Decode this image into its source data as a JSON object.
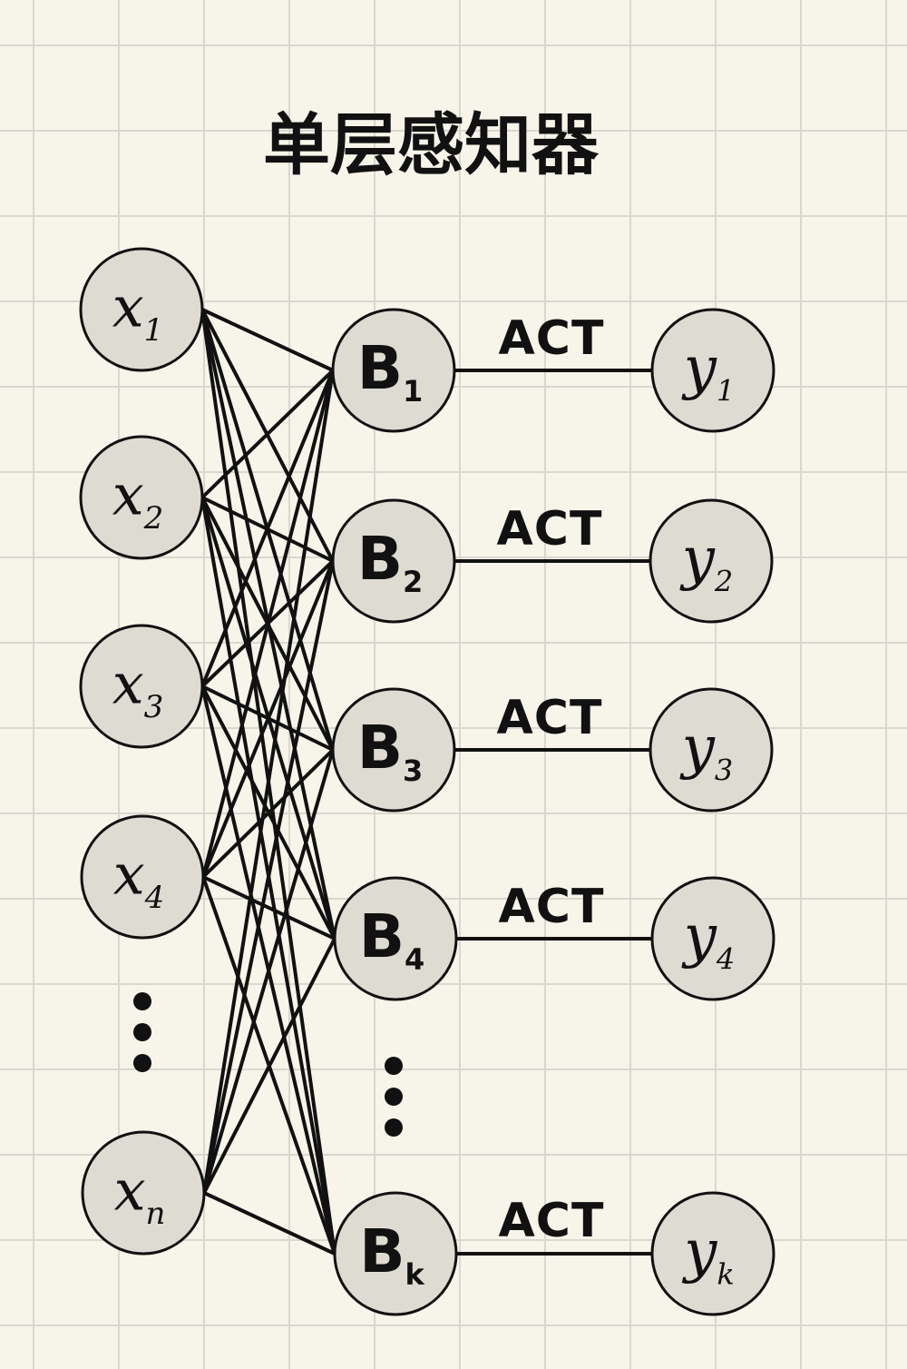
{
  "title": "单层感知器",
  "inputs": [
    {
      "main": "x",
      "sub": "1"
    },
    {
      "main": "x",
      "sub": "2"
    },
    {
      "main": "x",
      "sub": "3"
    },
    {
      "main": "x",
      "sub": "4"
    },
    {
      "main": "x",
      "sub": "n"
    }
  ],
  "hidden": [
    {
      "main": "B",
      "sub": "1"
    },
    {
      "main": "B",
      "sub": "2"
    },
    {
      "main": "B",
      "sub": "3"
    },
    {
      "main": "B",
      "sub": "4"
    },
    {
      "main": "B",
      "sub": "k"
    }
  ],
  "outputs": [
    {
      "main": "y",
      "sub": "1"
    },
    {
      "main": "y",
      "sub": "2"
    },
    {
      "main": "y",
      "sub": "3"
    },
    {
      "main": "y",
      "sub": "4"
    },
    {
      "main": "y",
      "sub": "k"
    }
  ],
  "activation_labels": [
    "ACT",
    "ACT",
    "ACT",
    "ACT",
    "ACT"
  ],
  "ellipsis": [
    "⋮",
    "⋮"
  ],
  "colors": {
    "node_fill": "#dedcd2",
    "stroke": "#111111",
    "paper": "#f7f5ea",
    "grid": "#d9d8cf"
  }
}
